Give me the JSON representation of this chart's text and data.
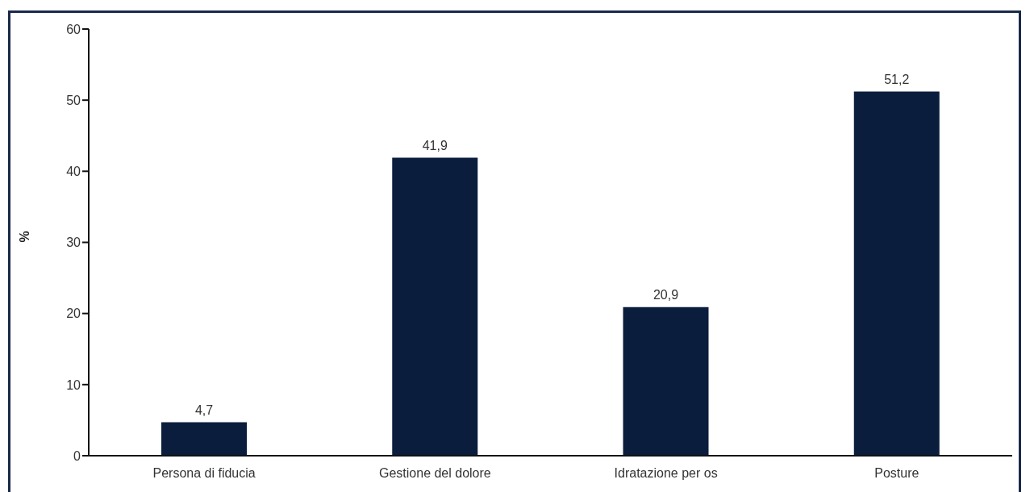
{
  "chart_data": {
    "type": "bar",
    "ylabel": "%",
    "categories": [
      "Persona di fiducia",
      "Gestione del dolore",
      "Idratazione per os",
      "Posture"
    ],
    "values": [
      4.7,
      41.9,
      20.9,
      51.2
    ],
    "value_labels": [
      "4,7",
      "41,9",
      "20,9",
      "51,2"
    ],
    "color": "#0b1d3c",
    "ylim": [
      0,
      60
    ],
    "yticks": [
      0,
      10,
      20,
      30,
      40,
      50,
      60
    ],
    "grid": false,
    "legend": false
  }
}
